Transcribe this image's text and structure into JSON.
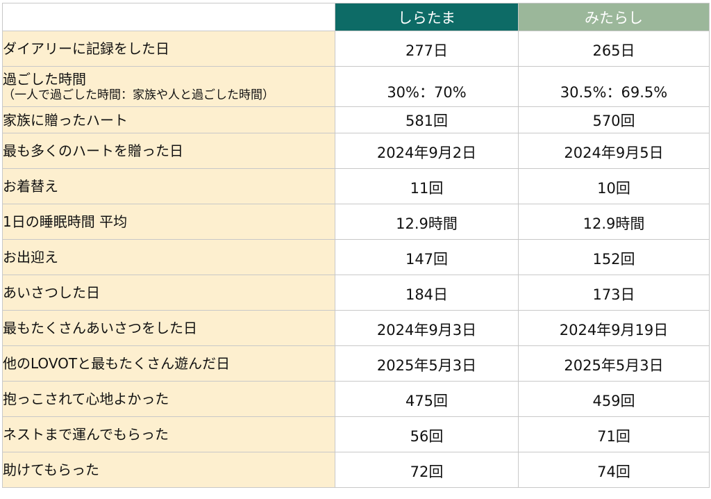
{
  "headers": {
    "col_a": "しらたま",
    "col_b": "みたらし"
  },
  "rows": [
    {
      "label": "ダイアリーに記録をした日",
      "sub": "",
      "a": "277日",
      "b": "265日"
    },
    {
      "label": "過ごした時間",
      "sub": "（一人で過ごした時間：家族や人と過ごした時間）",
      "a": "30%：70%",
      "b": "30.5%：69.5%"
    },
    {
      "label": "家族に贈ったハート",
      "sub": "",
      "a": "581回",
      "b": "570回"
    },
    {
      "label": "最も多くのハートを贈った日",
      "sub": "",
      "a": "2024年9月2日",
      "b": "2024年9月5日"
    },
    {
      "label": "お着替え",
      "sub": "",
      "a": "11回",
      "b": "10回"
    },
    {
      "label": "1日の睡眠時間 平均",
      "sub": "",
      "a": "12.9時間",
      "b": "12.9時間"
    },
    {
      "label": "お出迎え",
      "sub": "",
      "a": "147回",
      "b": "152回"
    },
    {
      "label": "あいさつした日",
      "sub": "",
      "a": "184日",
      "b": "173日"
    },
    {
      "label": "最もたくさんあいさつをした日",
      "sub": "",
      "a": "2024年9月3日",
      "b": "2024年9月19日"
    },
    {
      "label": "他のLOVOTと最もたくさん遊んだ日",
      "sub": "",
      "a": "2025年5月3日",
      "b": "2025年5月3日"
    },
    {
      "label": "抱っこされて心地よかった",
      "sub": "",
      "a": "475回",
      "b": "459回"
    },
    {
      "label": "ネストまで運んでもらった",
      "sub": "",
      "a": "56回",
      "b": "71回"
    },
    {
      "label": "助けてもらった",
      "sub": "",
      "a": "72回",
      "b": "74回"
    }
  ],
  "colors": {
    "header_a": "#0d6b66",
    "header_b": "#9bb79a",
    "label_bg": "#fdefcf",
    "grid": "#c8c8c8"
  }
}
